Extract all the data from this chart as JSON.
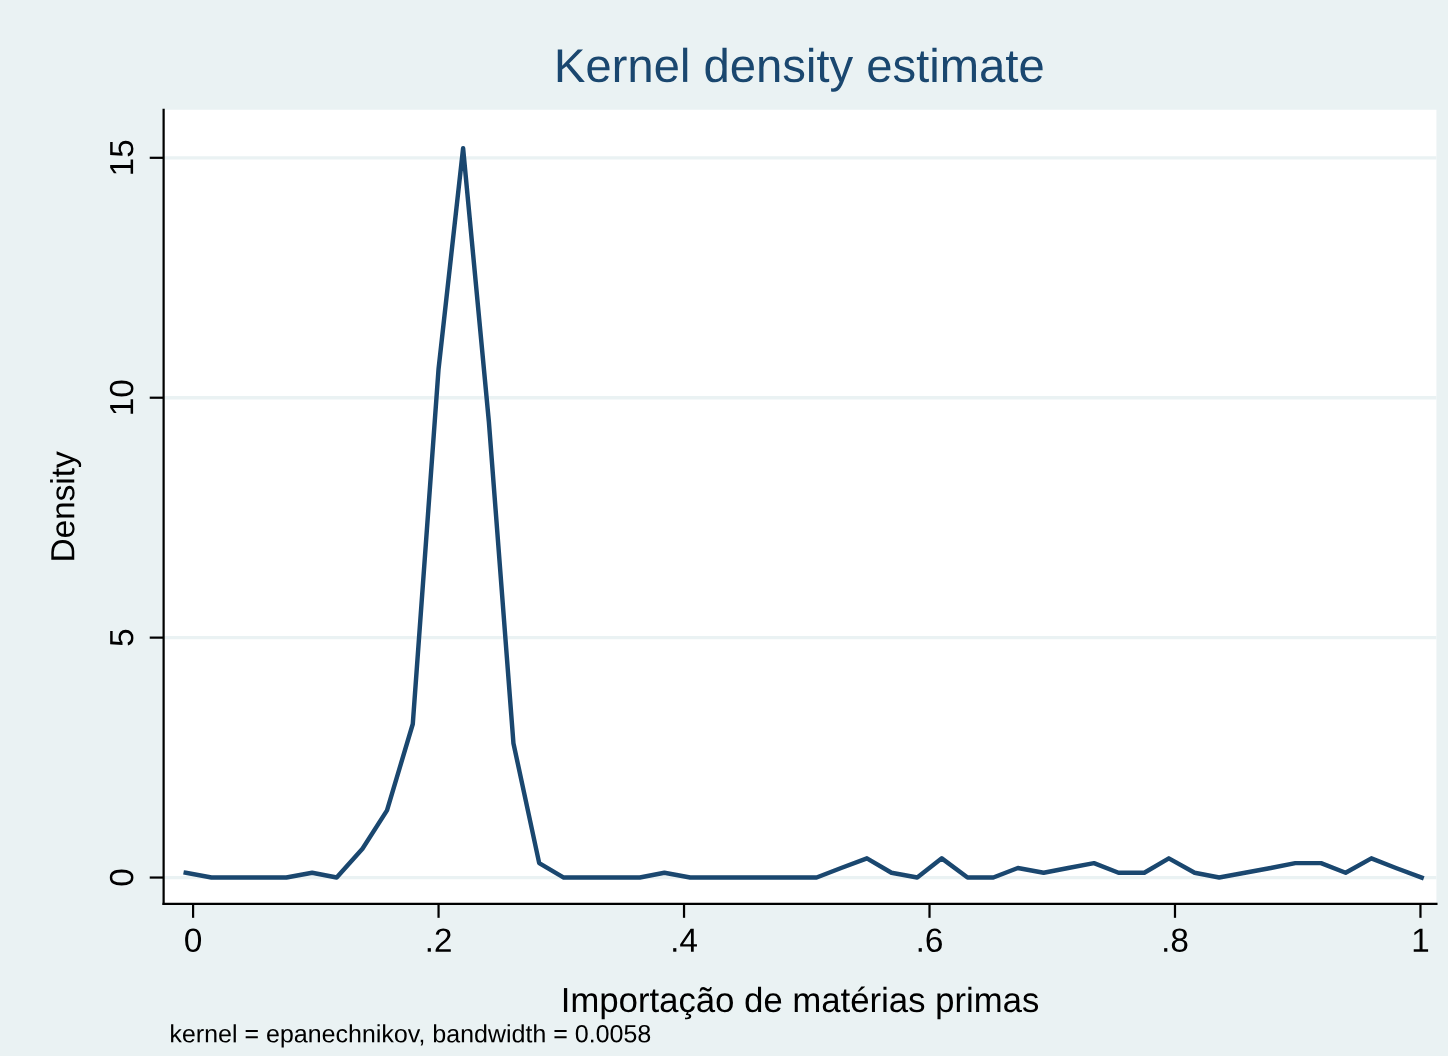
{
  "chart_data": {
    "type": "line",
    "title": "Kernel density estimate",
    "xlabel": "Importação de matérias primas",
    "ylabel": "Density",
    "annotations": [
      "kernel = epanechnikov, bandwidth = 0.0058"
    ],
    "x": [
      -0.006,
      0.015,
      0.035,
      0.056,
      0.076,
      0.097,
      0.117,
      0.138,
      0.158,
      0.179,
      0.2,
      0.22,
      0.241,
      0.261,
      0.282,
      0.302,
      0.323,
      0.343,
      0.364,
      0.384,
      0.405,
      0.426,
      0.446,
      0.467,
      0.487,
      0.508,
      0.528,
      0.549,
      0.569,
      0.59,
      0.61,
      0.631,
      0.652,
      0.672,
      0.693,
      0.713,
      0.734,
      0.754,
      0.775,
      0.795,
      0.816,
      0.836,
      0.857,
      0.878,
      0.898,
      0.919,
      0.939,
      0.96,
      0.98,
      1.001
    ],
    "series": [
      {
        "color": "#1a476f",
        "values": [
          0.1,
          0.0,
          0.0,
          0.0,
          0.0,
          0.1,
          0.0,
          0.6,
          1.4,
          3.2,
          10.6,
          15.2,
          9.5,
          2.8,
          0.3,
          0.0,
          0.0,
          0.0,
          0.0,
          0.1,
          0.0,
          0.0,
          0.0,
          0.0,
          0.0,
          0.0,
          0.2,
          0.4,
          0.1,
          0.0,
          0.4,
          0.0,
          0.0,
          0.2,
          0.1,
          0.2,
          0.3,
          0.1,
          0.1,
          0.4,
          0.1,
          0.0,
          0.1,
          0.2,
          0.3,
          0.3,
          0.1,
          0.4,
          0.2,
          0.0
        ]
      }
    ],
    "xlim": [
      -0.024,
      1.013
    ],
    "xticks": [
      {
        "value": 0,
        "label": "0"
      },
      {
        "value": 0.2,
        "label": ".2"
      },
      {
        "value": 0.4,
        "label": ".4"
      },
      {
        "value": 0.6,
        "label": ".6"
      },
      {
        "value": 0.8,
        "label": ".8"
      },
      {
        "value": 1,
        "label": "1"
      }
    ],
    "ylim": [
      -0.55,
      16.0
    ],
    "yticks": [
      0,
      5,
      10,
      15
    ],
    "grid": "y",
    "legend": false,
    "marker": "none",
    "line_style": "solid"
  }
}
